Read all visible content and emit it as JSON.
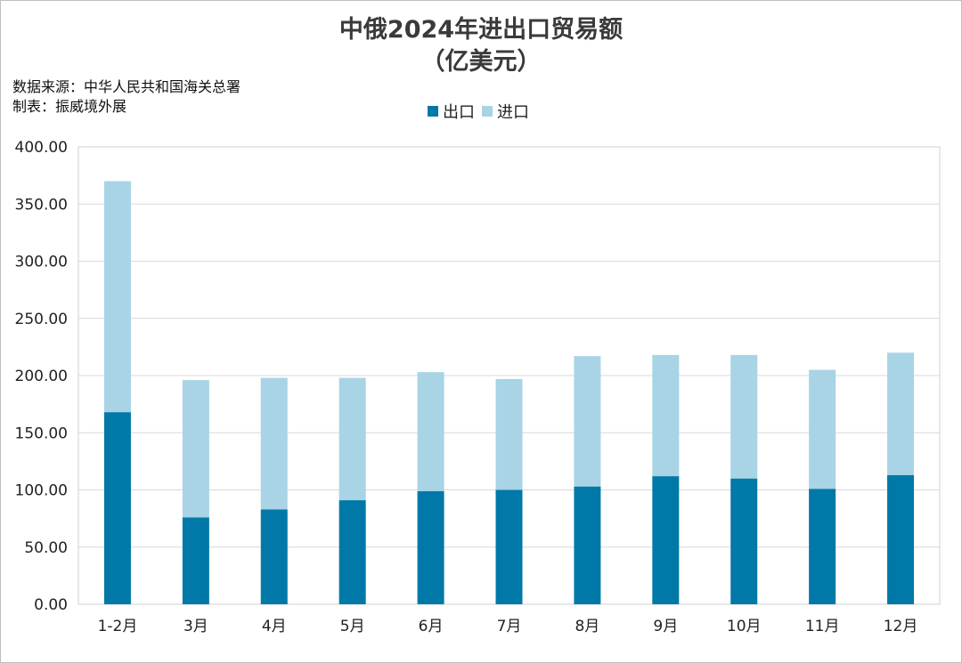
{
  "chart_data": {
    "type": "bar",
    "stacked": true,
    "title": "中俄2024年进出口贸易额",
    "subtitle": "（亿美元）",
    "source_note": "数据来源：中华人民共和国海关总署",
    "maker_note": "制表：振威境外展",
    "xlabel": "",
    "ylabel": "",
    "categories": [
      "1-2月",
      "3月",
      "4月",
      "5月",
      "6月",
      "7月",
      "8月",
      "9月",
      "10月",
      "11月",
      "12月"
    ],
    "series": [
      {
        "name": "出口",
        "color": "#0179a8",
        "values": [
          168,
          76,
          83,
          91,
          99,
          100,
          103,
          112,
          110,
          101,
          113
        ]
      },
      {
        "name": "进口",
        "color": "#a8d4e5",
        "values": [
          202,
          120,
          115,
          107,
          104,
          97,
          114,
          106,
          108,
          104,
          107
        ]
      }
    ],
    "ylim": [
      0,
      400
    ],
    "yticks": [
      "0.00",
      "50.00",
      "100.00",
      "150.00",
      "200.00",
      "250.00",
      "300.00",
      "350.00",
      "400.00"
    ],
    "grid": true,
    "legend_position": "top"
  }
}
